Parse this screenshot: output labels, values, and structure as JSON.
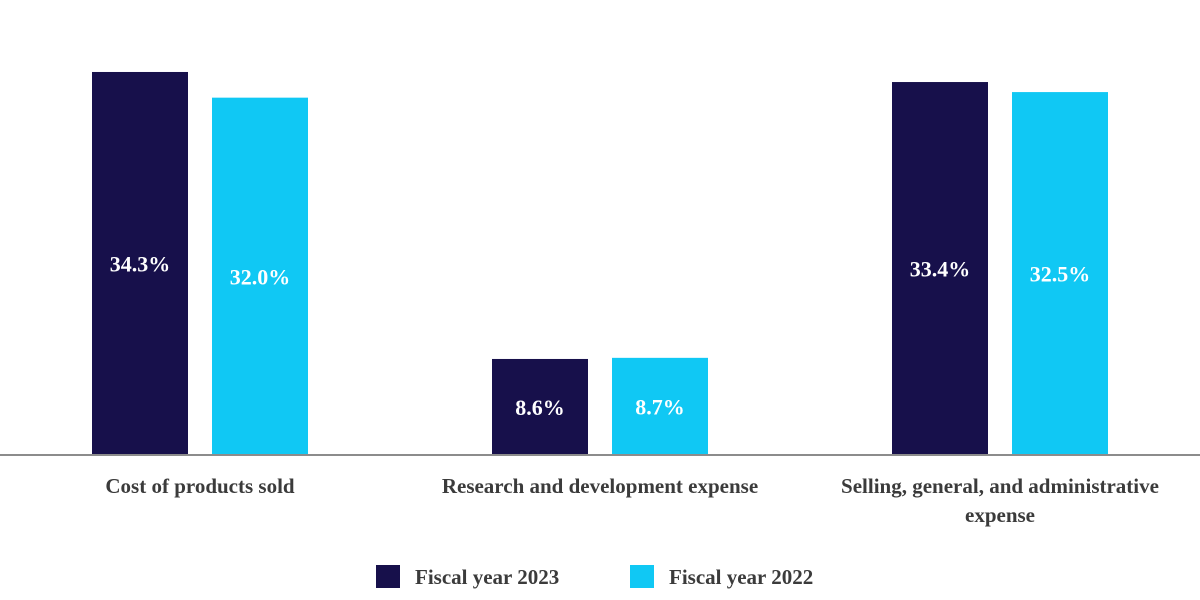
{
  "chart_data": {
    "type": "bar",
    "categories": [
      [
        "Cost of products sold"
      ],
      [
        "Research and development expense"
      ],
      [
        "Selling, general, and administrative",
        "expense"
      ]
    ],
    "series": [
      {
        "name": "Fiscal year 2023",
        "color": "#17104b",
        "values": [
          34.3,
          8.6,
          33.4
        ],
        "labels": [
          "34.3%",
          "8.6%",
          "33.4%"
        ]
      },
      {
        "name": "Fiscal year 2022",
        "color": "#10c8f4",
        "values": [
          32.0,
          8.7,
          32.5
        ],
        "labels": [
          "32.0%",
          "8.7%",
          "32.5%"
        ]
      }
    ],
    "title": "",
    "xlabel": "",
    "ylabel": "",
    "ylim": [
      0,
      36
    ],
    "grid": false,
    "legend_position": "bottom-center",
    "axis_color": "#8c8c8c"
  }
}
